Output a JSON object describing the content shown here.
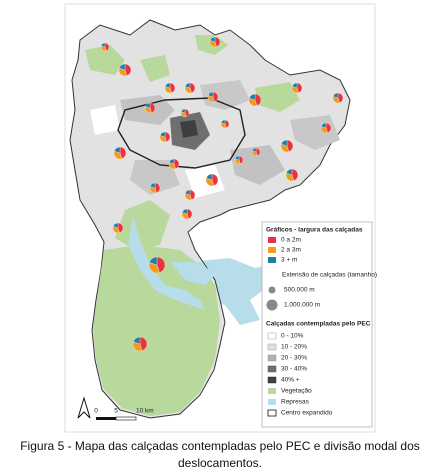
{
  "legend": {
    "title": "Gráficos - largura das calçadas",
    "widths": [
      "0 a 2m",
      "2 a 3m",
      "3 + m"
    ],
    "size_title": "Extensão de calçadas (tamanho)",
    "sizes": [
      "500.000 m",
      "1.000.000 m"
    ],
    "pec_title": "Calçadas contempladas pelo PEC",
    "pec_classes": [
      "0 - 10%",
      "10 - 20%",
      "20 - 30%",
      "30 - 40%",
      "40% +"
    ],
    "vegetation": "Vegetação",
    "reservoirs": "Represas",
    "center": "Centro expandido"
  },
  "scale": {
    "labels": [
      "0",
      "5",
      "10 km"
    ]
  },
  "caption": "Figura 5 - Mapa das calçadas contempladas pelo PEC e divisão modal dos deslocamentos."
}
